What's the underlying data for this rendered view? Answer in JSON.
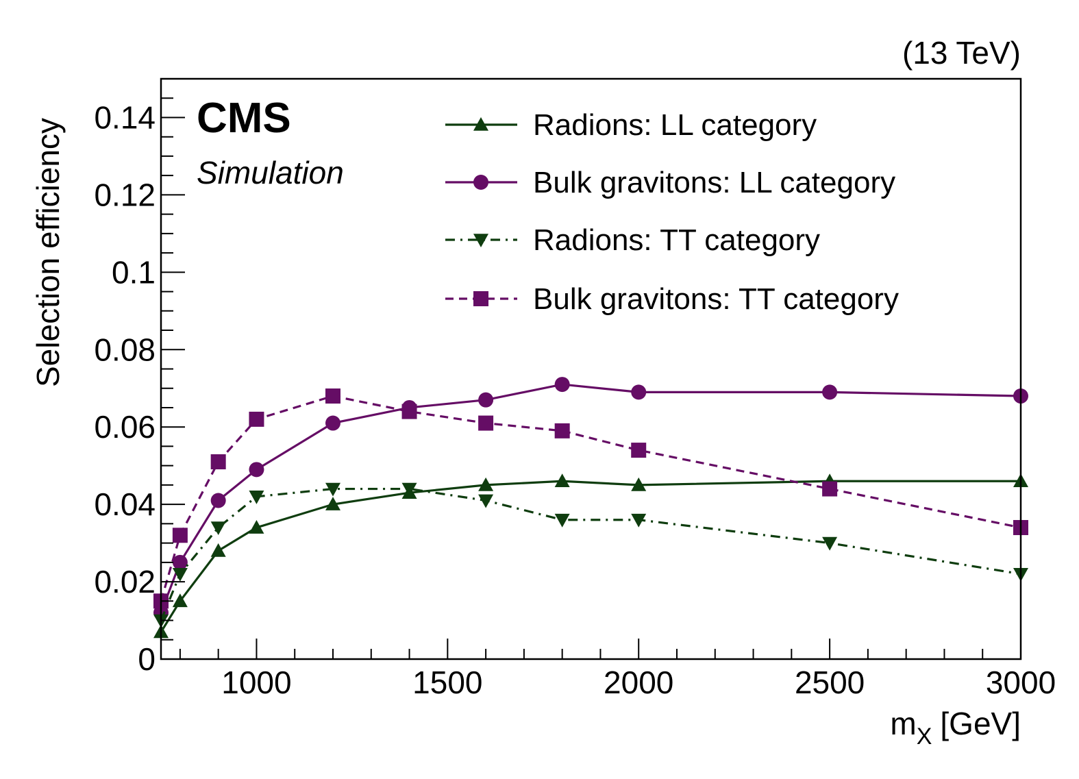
{
  "chart_data": {
    "type": "line",
    "energy_label": "(13 TeV)",
    "experiment": "CMS",
    "status": "Simulation",
    "xlabel": "m",
    "xlabel_sub": "X",
    "xlabel_unit": "[GeV]",
    "ylabel": "Selection efficiency",
    "xlim": [
      750,
      3000
    ],
    "ylim": [
      0,
      0.15
    ],
    "x_ticks": [
      1000,
      1500,
      2000,
      2500,
      3000
    ],
    "y_ticks": [
      0,
      0.02,
      0.04,
      0.06,
      0.08,
      0.1,
      0.12,
      0.14
    ],
    "y_tick_labels": [
      "0",
      "0.02",
      "0.04",
      "0.06",
      "0.08",
      "0.1",
      "0.12",
      "0.14"
    ],
    "legend_position": "top-right",
    "series": [
      {
        "name": "Radions: LL category",
        "color": "#0f3d0f",
        "marker": "triangle-up",
        "line": "solid",
        "x": [
          750,
          800,
          900,
          1000,
          1200,
          1400,
          1600,
          1800,
          2000,
          2500,
          3000
        ],
        "y": [
          0.007,
          0.015,
          0.028,
          0.034,
          0.04,
          0.043,
          0.045,
          0.046,
          0.045,
          0.046,
          0.046
        ]
      },
      {
        "name": "Bulk gravitons: LL category",
        "color": "#650d65",
        "marker": "circle",
        "line": "solid",
        "x": [
          750,
          800,
          900,
          1000,
          1200,
          1400,
          1600,
          1800,
          2000,
          2500,
          3000
        ],
        "y": [
          0.012,
          0.025,
          0.041,
          0.049,
          0.061,
          0.065,
          0.067,
          0.071,
          0.069,
          0.069,
          0.068
        ]
      },
      {
        "name": "Radions: TT category",
        "color": "#0f3d0f",
        "marker": "triangle-down",
        "line": "dashdot",
        "x": [
          750,
          800,
          900,
          1000,
          1200,
          1400,
          1600,
          1800,
          2000,
          2500,
          3000
        ],
        "y": [
          0.01,
          0.022,
          0.034,
          0.042,
          0.044,
          0.044,
          0.041,
          0.036,
          0.036,
          0.03,
          0.022
        ]
      },
      {
        "name": "Bulk gravitons: TT category",
        "color": "#650d65",
        "marker": "square",
        "line": "dashed",
        "x": [
          750,
          800,
          900,
          1000,
          1200,
          1400,
          1600,
          1800,
          2000,
          2500,
          3000
        ],
        "y": [
          0.015,
          0.032,
          0.051,
          0.062,
          0.068,
          0.064,
          0.061,
          0.059,
          0.054,
          0.044,
          0.034
        ]
      }
    ]
  }
}
